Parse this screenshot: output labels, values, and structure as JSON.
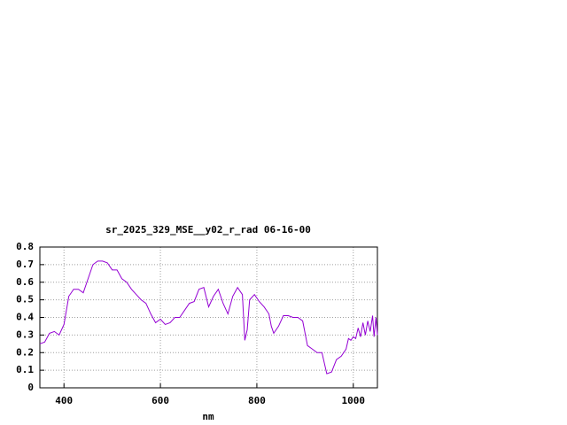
{
  "chart_data": {
    "type": "line",
    "title": "sr_2025_329_MSE__y02_r_rad 06-16-00",
    "x_label": "nm",
    "x": [
      350,
      360,
      370,
      380,
      390,
      400,
      410,
      420,
      430,
      440,
      450,
      460,
      470,
      480,
      490,
      500,
      510,
      520,
      530,
      540,
      550,
      560,
      570,
      580,
      590,
      600,
      610,
      620,
      630,
      640,
      650,
      660,
      670,
      680,
      690,
      700,
      710,
      720,
      730,
      740,
      750,
      760,
      770,
      775,
      780,
      785,
      795,
      805,
      815,
      825,
      830,
      835,
      845,
      855,
      865,
      875,
      885,
      895,
      905,
      915,
      925,
      935,
      945,
      955,
      965,
      975,
      985,
      990,
      995,
      1000,
      1005,
      1010,
      1015,
      1020,
      1025,
      1030,
      1035,
      1040,
      1043,
      1047,
      1050
    ],
    "series": [
      {
        "color": "#9400d3",
        "values": [
          0.25,
          0.26,
          0.31,
          0.32,
          0.3,
          0.36,
          0.52,
          0.56,
          0.56,
          0.54,
          0.62,
          0.7,
          0.72,
          0.72,
          0.71,
          0.67,
          0.67,
          0.62,
          0.6,
          0.56,
          0.53,
          0.5,
          0.48,
          0.42,
          0.37,
          0.39,
          0.36,
          0.37,
          0.4,
          0.4,
          0.44,
          0.48,
          0.49,
          0.56,
          0.57,
          0.46,
          0.52,
          0.56,
          0.48,
          0.42,
          0.52,
          0.57,
          0.53,
          0.27,
          0.33,
          0.5,
          0.53,
          0.49,
          0.46,
          0.42,
          0.35,
          0.31,
          0.35,
          0.41,
          0.41,
          0.4,
          0.4,
          0.38,
          0.24,
          0.22,
          0.2,
          0.2,
          0.08,
          0.09,
          0.16,
          0.18,
          0.22,
          0.28,
          0.27,
          0.29,
          0.28,
          0.34,
          0.29,
          0.37,
          0.3,
          0.38,
          0.32,
          0.41,
          0.29,
          0.4,
          0.3
        ]
      }
    ],
    "xlim": [
      350,
      1050
    ],
    "xticks": [
      400,
      600,
      800,
      1000
    ],
    "ylim": [
      0,
      0.8
    ],
    "yticks": [
      0,
      0.1,
      0.2,
      0.3,
      0.4,
      0.5,
      0.6,
      0.7,
      0.8
    ],
    "grid": true
  }
}
